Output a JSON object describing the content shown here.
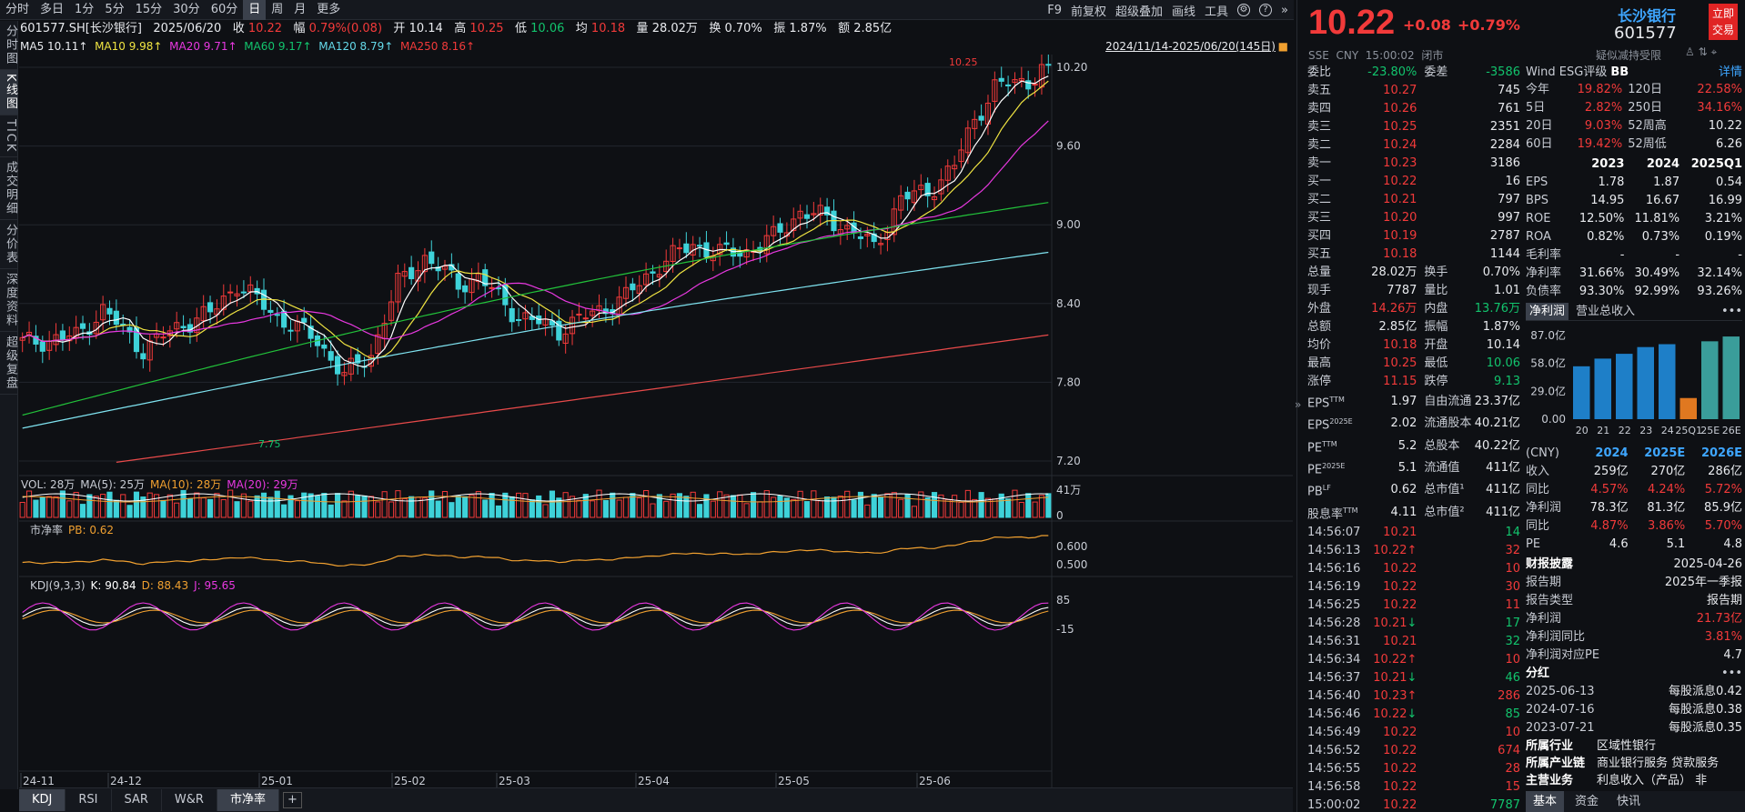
{
  "topbar": {
    "periods": [
      "分时",
      "多日",
      "1分",
      "5分",
      "15分",
      "30分",
      "60分",
      "日",
      "周",
      "月",
      "更多"
    ],
    "active_period": "日",
    "right": [
      "F9",
      "前复权",
      "超级叠加",
      "画线",
      "工具"
    ]
  },
  "leftnav": [
    "分时图",
    "K线图",
    "TICK",
    "成交明细",
    "分价表",
    "深度资料",
    "超级复盘"
  ],
  "leftnav_active": "K线图",
  "info": {
    "code": "601577.SH[长沙银行]",
    "date": "2025/06/20",
    "close_label": "收",
    "close": "10.22",
    "chg_label": "幅",
    "chg": "0.79%(0.08)",
    "open_label": "开",
    "open": "10.14",
    "high_label": "高",
    "high": "10.25",
    "low_label": "低",
    "low": "10.06",
    "avg_label": "均",
    "avg": "10.18",
    "vol_label": "量",
    "vol": "28.02万",
    "turn_label": "换",
    "turn": "0.70%",
    "amp_label": "振",
    "amp": "1.87%",
    "amt_label": "额",
    "amt": "2.85亿"
  },
  "ma": {
    "ma5": "MA5 10.11↑",
    "ma10": "MA10 9.98↑",
    "ma20": "MA20 9.71↑",
    "ma60": "MA60 9.17↑",
    "ma120": "MA120 8.79↑",
    "ma250": "MA250 8.16↑",
    "range": "2024/11/14-2025/06/20(145日)"
  },
  "axis": {
    "price_ticks": [
      "10.20",
      "9.60",
      "9.00",
      "8.40",
      "7.80",
      "7.20"
    ],
    "high_mark": "10.25",
    "low_mark": "7.75",
    "vol_ticks": [
      "41万",
      "0"
    ],
    "pb_ticks": [
      "0.600",
      "0.500"
    ],
    "kdj_ticks": [
      "85",
      "-15"
    ],
    "x_labels": [
      "24-11",
      "24-12",
      "25-01",
      "25-02",
      "25-03",
      "25-04",
      "25-05",
      "25-06"
    ]
  },
  "vol_legend": {
    "vol": "VOL: 28万",
    "ma5": "MA(5): 25万",
    "ma10": "MA(10): 28万",
    "ma20": "MA(20): 29万"
  },
  "pb_legend": {
    "name": "市净率",
    "pb": "PB: 0.62"
  },
  "kdj_legend": {
    "name": "KDJ(9,3,3)",
    "k": "K: 90.84",
    "d": "D: 88.43",
    "j": "J: 95.65"
  },
  "bottom_tabs": [
    "KDJ",
    "RSI",
    "SAR",
    "W&R",
    "市净率"
  ],
  "bottom_active": [
    "KDJ",
    "市净率"
  ],
  "colors": {
    "up": "#f23a3a",
    "down": "#3ed2d9",
    "ma5": "#ffffff",
    "ma10": "#f0e442",
    "ma20": "#e838e0",
    "ma60": "#22c23a",
    "ma120": "#7fe3f0",
    "ma250": "#e84a4a"
  },
  "quote": {
    "price": "10.22",
    "change": "+0.08",
    "pct": "+0.79%",
    "name": "长沙银行",
    "code": "601577",
    "trade_btn": "立即交易",
    "exch": "SSE",
    "cur": "CNY",
    "time": "15:00:02",
    "status": "闭市",
    "wei_bi_label": "委比",
    "wei_bi": "-23.80%",
    "wei_cha_label": "委差",
    "wei_cha": "-3586",
    "asks": [
      {
        "label": "卖五",
        "price": "10.27",
        "vol": "745"
      },
      {
        "label": "卖四",
        "price": "10.26",
        "vol": "761"
      },
      {
        "label": "卖三",
        "price": "10.25",
        "vol": "2351"
      },
      {
        "label": "卖二",
        "price": "10.24",
        "vol": "2284"
      },
      {
        "label": "卖一",
        "price": "10.23",
        "vol": "3186"
      }
    ],
    "bids": [
      {
        "label": "买一",
        "price": "10.22",
        "vol": "16"
      },
      {
        "label": "买二",
        "price": "10.21",
        "vol": "797"
      },
      {
        "label": "买三",
        "price": "10.20",
        "vol": "997"
      },
      {
        "label": "买四",
        "price": "10.19",
        "vol": "2787"
      },
      {
        "label": "买五",
        "price": "10.18",
        "vol": "1144"
      }
    ],
    "stats": [
      {
        "l1": "总量",
        "v1": "28.02万",
        "c1": "white",
        "l2": "换手",
        "v2": "0.70%",
        "c2": "white"
      },
      {
        "l1": "现手",
        "v1": "7787",
        "c1": "white",
        "l2": "量比",
        "v2": "1.01",
        "c2": "white"
      },
      {
        "l1": "外盘",
        "v1": "14.26万",
        "c1": "red",
        "l2": "内盘",
        "v2": "13.76万",
        "c2": "green"
      },
      {
        "l1": "总额",
        "v1": "2.85亿",
        "c1": "white",
        "l2": "振幅",
        "v2": "1.87%",
        "c2": "white"
      },
      {
        "l1": "均价",
        "v1": "10.18",
        "c1": "red",
        "l2": "开盘",
        "v2": "10.14",
        "c2": "white"
      },
      {
        "l1": "最高",
        "v1": "10.25",
        "c1": "red",
        "l2": "最低",
        "v2": "10.06",
        "c2": "green"
      },
      {
        "l1": "涨停",
        "v1": "11.15",
        "c1": "red",
        "l2": "跌停",
        "v2": "9.13",
        "c2": "green"
      }
    ],
    "fund": [
      {
        "l1": "EPS",
        "s1": "TTM",
        "v1": "1.97",
        "l2": "自由流通",
        "v2": "23.37亿"
      },
      {
        "l1": "EPS",
        "s1": "2025E",
        "v1": "2.02",
        "l2": "流通股本",
        "v2": "40.21亿"
      },
      {
        "l1": "PE",
        "s1": "TTM",
        "v1": "5.2",
        "l2": "总股本",
        "v2": "40.22亿"
      },
      {
        "l1": "PE",
        "s1": "2025E",
        "v1": "5.1",
        "l2": "流通值",
        "v2": "411亿"
      },
      {
        "l1": "PB",
        "s1": "LF",
        "v1": "0.62",
        "l2": "总市值¹",
        "v2": "411亿"
      },
      {
        "l1": "股息率",
        "s1": "TTM",
        "v1": "4.11",
        "l2": "总市值²",
        "v2": "411亿"
      }
    ],
    "ticks": [
      {
        "t": "14:56:07",
        "p": "10.21",
        "a": "",
        "v": "14",
        "vc": "green"
      },
      {
        "t": "14:56:13",
        "p": "10.22",
        "a": "↑",
        "v": "32",
        "vc": "red"
      },
      {
        "t": "14:56:16",
        "p": "10.22",
        "a": "",
        "v": "10",
        "vc": "red"
      },
      {
        "t": "14:56:19",
        "p": "10.22",
        "a": "",
        "v": "30",
        "vc": "red"
      },
      {
        "t": "14:56:25",
        "p": "10.22",
        "a": "",
        "v": "11",
        "vc": "red"
      },
      {
        "t": "14:56:28",
        "p": "10.21",
        "a": "↓",
        "v": "17",
        "vc": "green"
      },
      {
        "t": "14:56:31",
        "p": "10.21",
        "a": "",
        "v": "32",
        "vc": "green"
      },
      {
        "t": "14:56:34",
        "p": "10.22",
        "a": "↑",
        "v": "10",
        "vc": "red"
      },
      {
        "t": "14:56:37",
        "p": "10.21",
        "a": "↓",
        "v": "46",
        "vc": "green"
      },
      {
        "t": "14:56:40",
        "p": "10.23",
        "a": "↑",
        "v": "286",
        "vc": "red"
      },
      {
        "t": "14:56:46",
        "p": "10.22",
        "a": "↓",
        "v": "85",
        "vc": "green"
      },
      {
        "t": "14:56:49",
        "p": "10.22",
        "a": "",
        "v": "10",
        "vc": "red"
      },
      {
        "t": "14:56:52",
        "p": "10.22",
        "a": "",
        "v": "674",
        "vc": "red"
      },
      {
        "t": "14:56:55",
        "p": "10.22",
        "a": "",
        "v": "28",
        "vc": "red"
      },
      {
        "t": "14:56:58",
        "p": "10.22",
        "a": "",
        "v": "15",
        "vc": "red"
      },
      {
        "t": "15:00:02",
        "p": "10.22",
        "a": "",
        "v": "7787",
        "vc": "green"
      }
    ]
  },
  "wind": {
    "title": "Wind ESG评级",
    "grade": "BB",
    "detail": "详情",
    "tools": "疑似减持受限",
    "perf": [
      {
        "l1": "今年",
        "v1": "19.82%",
        "l2": "120日",
        "v2": "22.58%",
        "c2": "red"
      },
      {
        "l1": "5日",
        "v1": "2.82%",
        "l2": "250日",
        "v2": "34.16%",
        "c2": "red"
      },
      {
        "l1": "20日",
        "v1": "9.03%",
        "l2": "52周高",
        "v2": "10.22",
        "c2": "white"
      },
      {
        "l1": "60日",
        "v1": "19.42%",
        "l2": "52周低",
        "v2": "6.26",
        "c2": "white"
      }
    ],
    "years": [
      "2023",
      "2024",
      "2025Q1"
    ],
    "fin": [
      {
        "l": "EPS",
        "v": [
          "1.78",
          "1.87",
          "0.54"
        ]
      },
      {
        "l": "BPS",
        "v": [
          "14.95",
          "16.67",
          "16.99"
        ]
      },
      {
        "l": "ROE",
        "v": [
          "12.50%",
          "11.81%",
          "3.21%"
        ]
      },
      {
        "l": "ROA",
        "v": [
          "0.82%",
          "0.73%",
          "0.19%"
        ]
      },
      {
        "l": "毛利率",
        "v": [
          "-",
          "-",
          "-"
        ]
      },
      {
        "l": "净利率",
        "v": [
          "31.66%",
          "30.49%",
          "32.14%"
        ]
      },
      {
        "l": "负债率",
        "v": [
          "93.30%",
          "92.99%",
          "93.26%"
        ]
      }
    ],
    "tabs": [
      "净利润",
      "营业总收入"
    ],
    "bar_ticks": [
      "87.0亿",
      "58.0亿",
      "29.0亿",
      "0.00"
    ],
    "bar_labels": [
      "20",
      "21",
      "22",
      "23",
      "24",
      "25Q1",
      "25E",
      "26E"
    ],
    "fcst_head": [
      "(CNY)",
      "2024",
      "2025E",
      "2026E"
    ],
    "fcst": [
      {
        "l": "收入",
        "v": [
          "259亿",
          "270亿",
          "286亿"
        ],
        "c": "white"
      },
      {
        "l": "同比",
        "v": [
          "4.57%",
          "4.24%",
          "5.72%"
        ],
        "c": "red"
      },
      {
        "l": "净利润",
        "v": [
          "78.3亿",
          "81.3亿",
          "85.9亿"
        ],
        "c": "white"
      },
      {
        "l": "同比",
        "v": [
          "4.87%",
          "3.86%",
          "5.70%"
        ],
        "c": "red"
      },
      {
        "l": "PE",
        "v": [
          "4.6",
          "5.1",
          "4.8"
        ],
        "c": "white"
      }
    ],
    "report_title": "财报披露",
    "report_date": "2025-04-26",
    "report": [
      {
        "l": "报告期",
        "v": "2025年一季报",
        "c": "white"
      },
      {
        "l": "报告类型",
        "v": "报告期",
        "c": "white"
      },
      {
        "l": "净利润",
        "v": "21.73亿",
        "c": "red"
      },
      {
        "l": "净利润同比",
        "v": "3.81%",
        "c": "red"
      },
      {
        "l": "净利润对应PE",
        "v": "4.7",
        "c": "white"
      }
    ],
    "div_title": "分红",
    "div": [
      {
        "d": "2025-06-13",
        "v": "每股派息0.42"
      },
      {
        "d": "2024-07-16",
        "v": "每股派息0.38"
      },
      {
        "d": "2023-07-21",
        "v": "每股派息0.35"
      }
    ],
    "industry_label": "所属行业",
    "industry": "区域性银行",
    "chain_label": "所属产业链",
    "chain": "商业银行服务  贷款服务",
    "biz_label": "主营业务",
    "biz": "利息收入（产品）  非",
    "bottom_tabs": [
      "基本",
      "资金",
      "快讯"
    ]
  },
  "chart_data": [
    {
      "type": "bar",
      "title": "净利润",
      "categories": [
        "20",
        "21",
        "22",
        "23",
        "24",
        "25Q1",
        "25E",
        "26E"
      ],
      "values": [
        55,
        63,
        68,
        75,
        78,
        22,
        81,
        86
      ],
      "ylim": [
        0,
        87
      ]
    }
  ]
}
